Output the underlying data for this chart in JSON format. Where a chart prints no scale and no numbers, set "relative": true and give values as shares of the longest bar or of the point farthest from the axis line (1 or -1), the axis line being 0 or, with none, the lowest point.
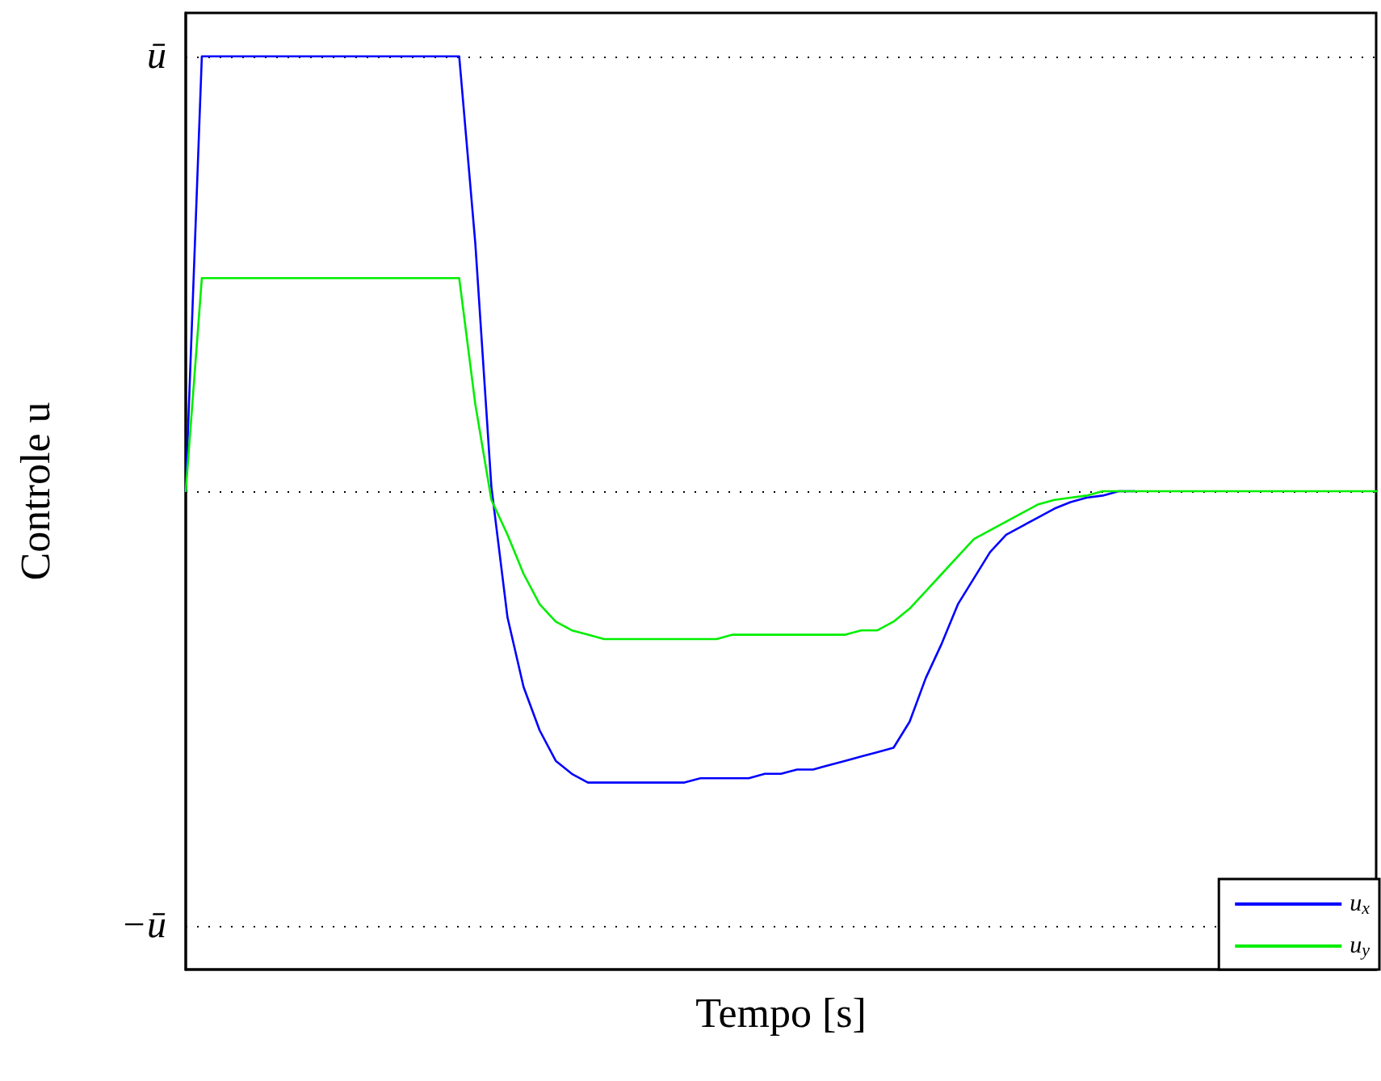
{
  "chart_data": {
    "type": "line",
    "xlabel": "Tempo [s]",
    "ylabel": "Controle u",
    "categories": [
      null,
      null,
      null,
      null,
      null,
      null,
      null,
      null,
      null,
      null,
      null,
      null,
      null,
      null,
      null,
      null,
      null,
      null,
      null,
      null,
      null,
      null,
      null,
      null,
      null,
      null,
      null,
      null,
      null,
      null,
      null,
      null,
      null,
      null,
      null,
      null,
      null,
      null,
      null,
      null,
      null,
      null,
      null,
      null,
      null,
      null,
      null,
      null,
      null,
      null,
      null,
      null,
      null,
      null,
      null,
      null,
      null,
      null,
      null,
      null,
      null,
      null,
      null,
      null,
      null,
      null,
      null,
      null,
      null,
      null,
      null,
      null,
      null,
      null,
      null
    ],
    "series": [
      {
        "name": "u$_{x}$",
        "color": "#0000ff",
        "values": [
          0,
          1,
          1,
          1,
          1,
          1,
          1,
          1,
          1,
          1,
          1,
          1,
          1,
          1,
          1,
          1,
          1,
          1,
          0.57,
          0.01,
          -0.29,
          -0.45,
          -0.55,
          -0.62,
          -0.65,
          -0.67,
          -0.67,
          -0.67,
          -0.67,
          -0.67,
          -0.67,
          -0.67,
          -0.66,
          -0.66,
          -0.66,
          -0.66,
          -0.65,
          -0.65,
          -0.64,
          -0.64,
          -0.63,
          -0.62,
          -0.61,
          -0.6,
          -0.59,
          -0.53,
          -0.43,
          -0.35,
          -0.26,
          -0.2,
          -0.14,
          -0.1,
          -0.08,
          -0.06,
          -0.04,
          -0.025,
          -0.015,
          -0.01,
          0,
          0,
          null,
          null,
          null,
          null,
          null,
          null,
          null,
          null,
          null,
          null,
          null,
          null,
          null,
          null,
          null
        ]
      },
      {
        "name": "u$_{y}$",
        "color": "#00ee00",
        "values": [
          0,
          0.49,
          0.49,
          0.49,
          0.49,
          0.49,
          0.49,
          0.49,
          0.49,
          0.49,
          0.49,
          0.49,
          0.49,
          0.49,
          0.49,
          0.49,
          0.49,
          0.49,
          0.2,
          -0.02,
          -0.1,
          -0.19,
          -0.26,
          -0.3,
          -0.32,
          -0.33,
          -0.34,
          -0.34,
          -0.34,
          -0.34,
          -0.34,
          -0.34,
          -0.34,
          -0.34,
          -0.33,
          -0.33,
          -0.33,
          -0.33,
          -0.33,
          -0.33,
          -0.33,
          -0.33,
          -0.32,
          -0.32,
          -0.3,
          -0.27,
          -0.23,
          -0.19,
          -0.15,
          -0.11,
          -0.09,
          -0.07,
          -0.05,
          -0.03,
          -0.02,
          -0.015,
          -0.01,
          0,
          0,
          0,
          0,
          0,
          0,
          0,
          0,
          0,
          0,
          0,
          0,
          0,
          0,
          0,
          0,
          0,
          0
        ]
      }
    ],
    "relative": true,
    "ref_lines": [
      {
        "axis": "y",
        "value": 1,
        "label": "ū",
        "line_style": "dotted"
      },
      {
        "axis": "y",
        "value": 0,
        "label": null,
        "line_style": "dotted"
      },
      {
        "axis": "y",
        "value": -1,
        "label": "−ū",
        "line_style": "dotted"
      }
    ],
    "legend": "bottom right",
    "marker": "none",
    "line_style": "solid"
  }
}
